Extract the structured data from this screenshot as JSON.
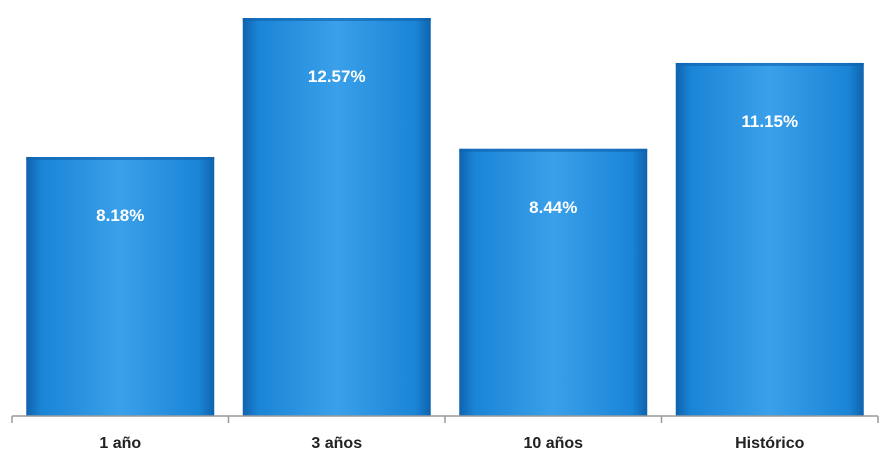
{
  "chart_data": {
    "type": "bar",
    "categories": [
      "1 año",
      "3 años",
      "10 años",
      "Histórico"
    ],
    "values": [
      8.18,
      12.57,
      8.44,
      11.15
    ],
    "data_labels": [
      "8.18%",
      "12.57%",
      "8.44%",
      "11.15%"
    ],
    "title": "",
    "xlabel": "",
    "ylabel": "",
    "ylim": [
      0,
      13
    ],
    "grid": false,
    "legend": "none",
    "colors": {
      "bar": "#1a84d6",
      "bar_light": "#3aa0ea",
      "bar_dark": "#0f63ad",
      "axis": "#9a9a9a",
      "label": "#ffffff",
      "tick": "#222222"
    }
  }
}
